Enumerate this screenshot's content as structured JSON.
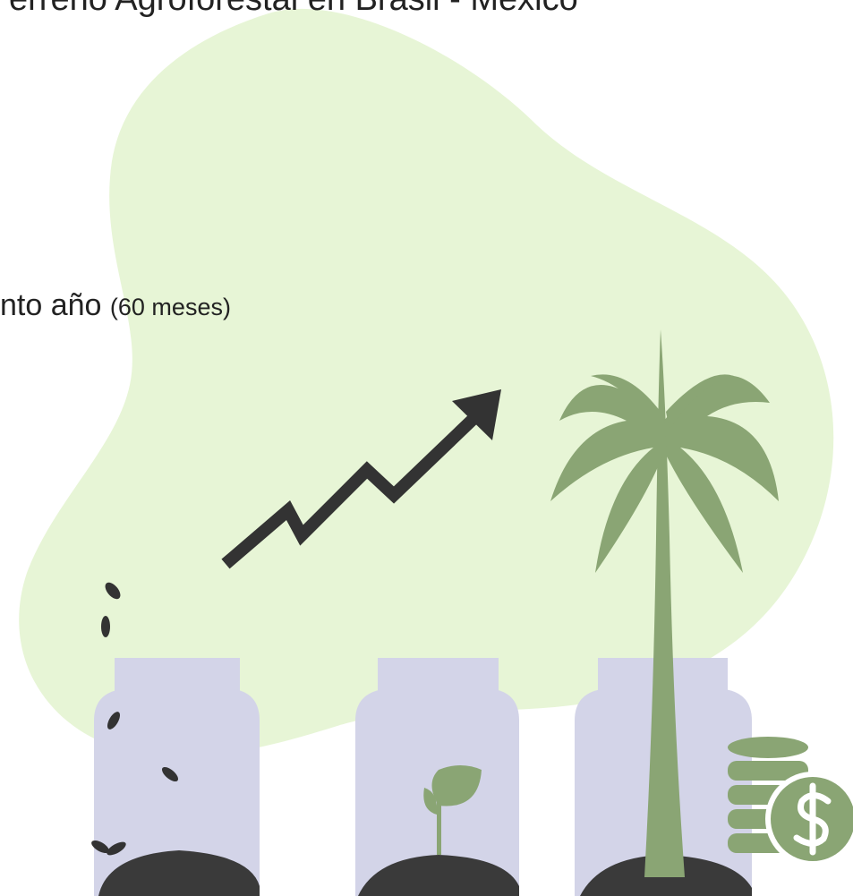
{
  "header": {
    "title": "erreno Agroforestal en Brasil - México"
  },
  "caption": {
    "text": "nto año",
    "note": "(60 meses)"
  }
}
